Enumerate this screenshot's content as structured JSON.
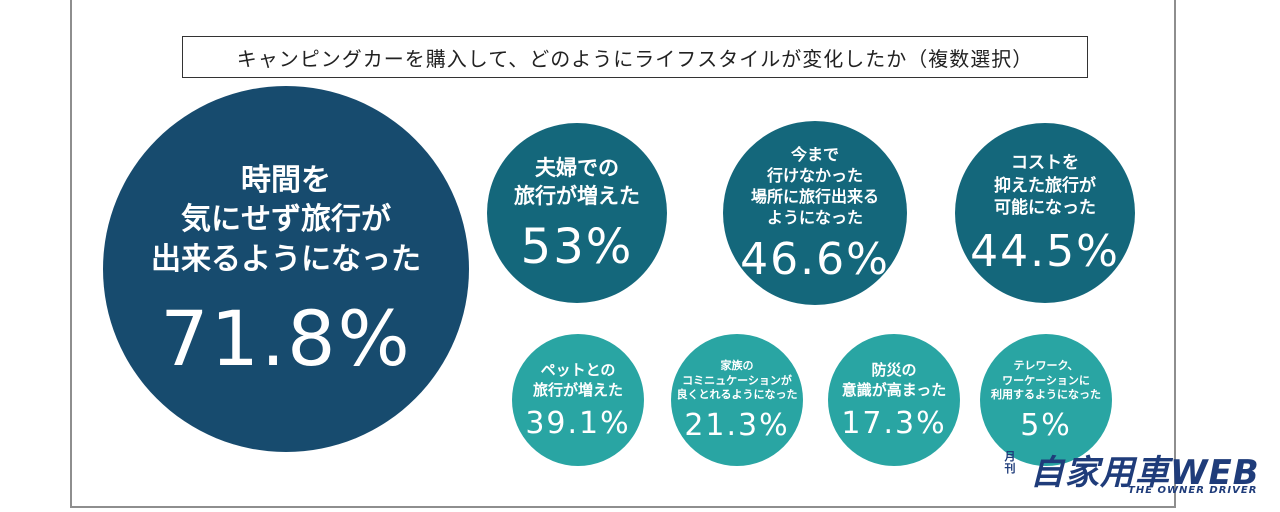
{
  "chart_data": {
    "type": "bubble",
    "title": "キャンピングカーを購入して、どのようにライフスタイルが変化したか（複数選択）",
    "items": [
      {
        "label": "時間を\n気にせず旅行が\n出来るようになった",
        "value_text": "71.8%",
        "value": 71.8,
        "color": "#174b6e"
      },
      {
        "label": "夫婦での\n旅行が増えた",
        "value_text": "53%",
        "value": 53,
        "color": "#14677b"
      },
      {
        "label": "今まで\n行けなかった\n場所に旅行出来る\nようになった",
        "value_text": "46.6%",
        "value": 46.6,
        "color": "#14677b"
      },
      {
        "label": "コストを\n抑えた旅行が\n可能になった",
        "value_text": "44.5%",
        "value": 44.5,
        "color": "#14677b"
      },
      {
        "label": "ペットとの\n旅行が増えた",
        "value_text": "39.1%",
        "value": 39.1,
        "color": "#29a5a3"
      },
      {
        "label": "家族の\nコミニュケーションが\n良くとれるようになった",
        "value_text": "21.3%",
        "value": 21.3,
        "color": "#29a5a3"
      },
      {
        "label": "防災の\n意識が高まった",
        "value_text": "17.3%",
        "value": 17.3,
        "color": "#29a5a3"
      },
      {
        "label": "テレワーク、\nワーケーションに\n利用するようになった",
        "value_text": "5%",
        "value": 5,
        "color": "#29a5a3"
      }
    ]
  },
  "logo": {
    "name": "自家用車WEB",
    "kicker": "月刊",
    "tagline": "THE OWNER DRIVER"
  }
}
